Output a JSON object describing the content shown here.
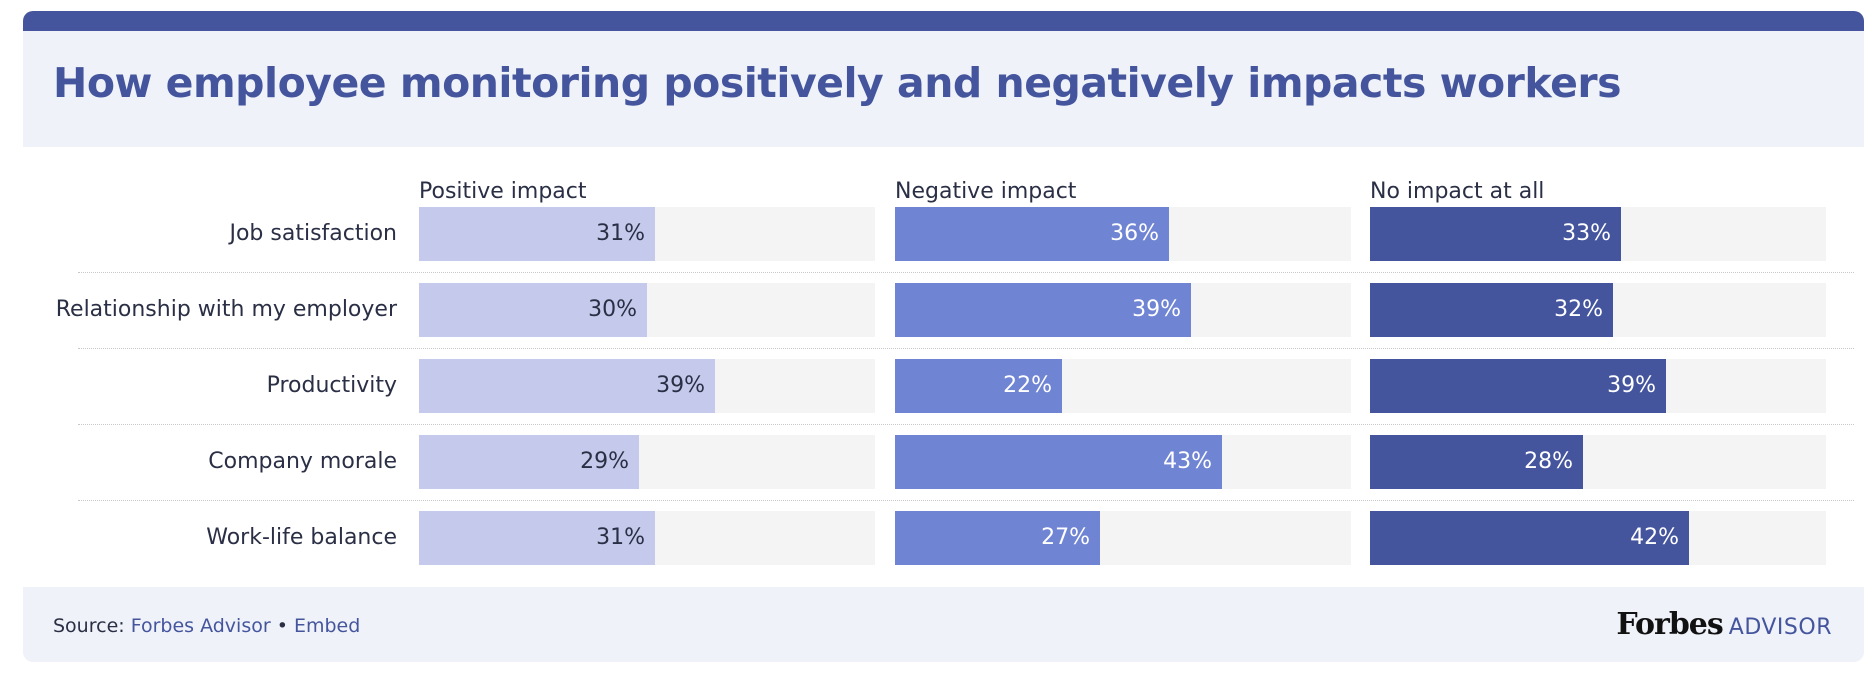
{
  "title": "How employee monitoring positively and negatively impacts workers",
  "footer": {
    "source_prefix": "Source: ",
    "source_link": "Forbes Advisor",
    "separator": " • ",
    "embed_link": "Embed",
    "logo_forbes": "Forbes",
    "logo_advisor": "ADVISOR"
  },
  "colors": {
    "positive": "#c5caec",
    "negative": "#7084d4",
    "none": "#44559e",
    "track": "#f4f4f4"
  },
  "chart_data": {
    "type": "bar",
    "title": "How employee monitoring positively and negatively impacts workers",
    "categories": [
      "Job satisfaction",
      "Relationship with my employer",
      "Productivity",
      "Company morale",
      "Work-life balance"
    ],
    "series": [
      {
        "name": "Positive impact",
        "values": [
          31,
          30,
          39,
          29,
          31
        ]
      },
      {
        "name": "Negative impact",
        "values": [
          36,
          39,
          22,
          43,
          27
        ]
      },
      {
        "name": "No impact at all",
        "values": [
          33,
          32,
          39,
          28,
          42
        ]
      }
    ],
    "value_suffix": "%",
    "xlim": [
      0,
      60
    ],
    "grid": false,
    "legend": "column headers"
  }
}
